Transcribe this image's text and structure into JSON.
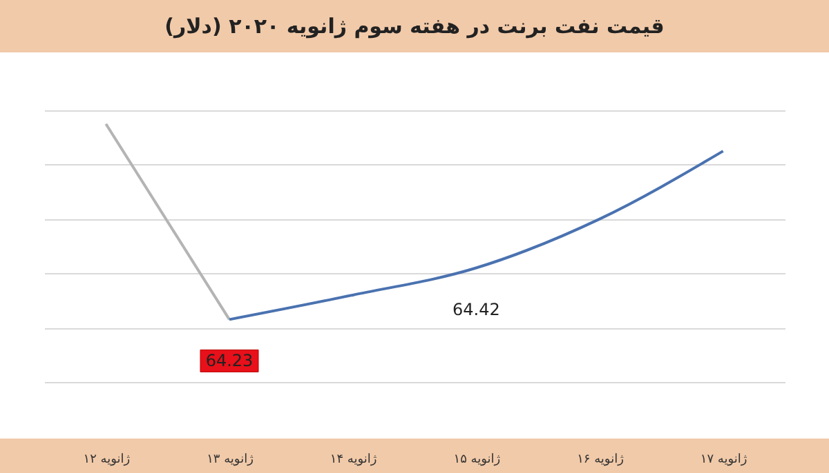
{
  "chart_data": {
    "type": "line",
    "title": "قیمت نفت برنت در هفته سوم ژانویه ۲۰۲۰ (دلار)",
    "categories": [
      "۱۲ ژانویه",
      "۱۳ ژانویه",
      "۱۴ ژانویه",
      "۱۵ ژانویه",
      "۱۶ ژانویه",
      "۱۷ ژانویه"
    ],
    "series": [
      {
        "color": "#b4b4b4",
        "values": [
          64.95,
          64.23,
          null,
          null,
          null,
          null
        ]
      },
      {
        "color": "#4a72b0",
        "values": [
          null,
          64.23,
          64.32,
          64.42,
          64.6,
          64.85
        ],
        "value_labels": [
          null,
          "64.23",
          null,
          "64.42",
          null,
          null
        ]
      }
    ],
    "yticks": [
      {
        "value": 64.0,
        "label": null
      },
      {
        "value": 64.2,
        "label": null
      },
      {
        "value": 64.4,
        "label": null
      },
      {
        "value": 64.6,
        "label": null
      },
      {
        "value": 64.8,
        "label": null
      },
      {
        "value": 65.0,
        "label": null
      }
    ],
    "grid": "y",
    "line_style": "solid"
  }
}
